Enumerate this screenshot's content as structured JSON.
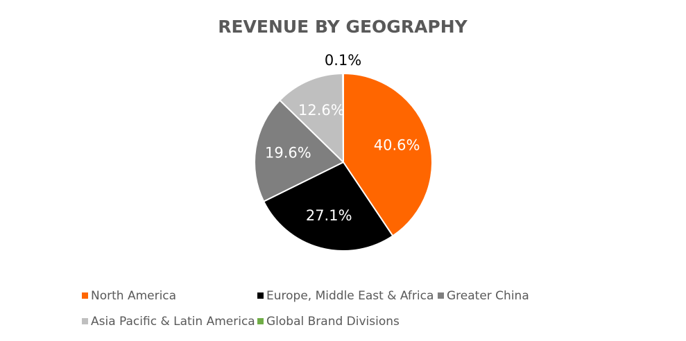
{
  "chart_data": {
    "type": "pie",
    "title": "REVENUE BY GEOGRAPHY",
    "categories": [
      "North America",
      "Europe, Middle East & Africa",
      "Greater China",
      "Asia Pacific & Latin America",
      "Global Brand Divisions"
    ],
    "values": [
      40.6,
      27.1,
      19.6,
      12.6,
      0.1
    ],
    "labels": [
      "40.6%",
      "27.1%",
      "19.6%",
      "12.6%",
      "0.1%"
    ],
    "colors": [
      "#ff6600",
      "#000000",
      "#7f7f7f",
      "#bfbfbf",
      "#70ad47"
    ],
    "label_colors": [
      "#ffffff",
      "#ffffff",
      "#ffffff",
      "#ffffff",
      "#000000"
    ],
    "legend_position": "bottom"
  }
}
